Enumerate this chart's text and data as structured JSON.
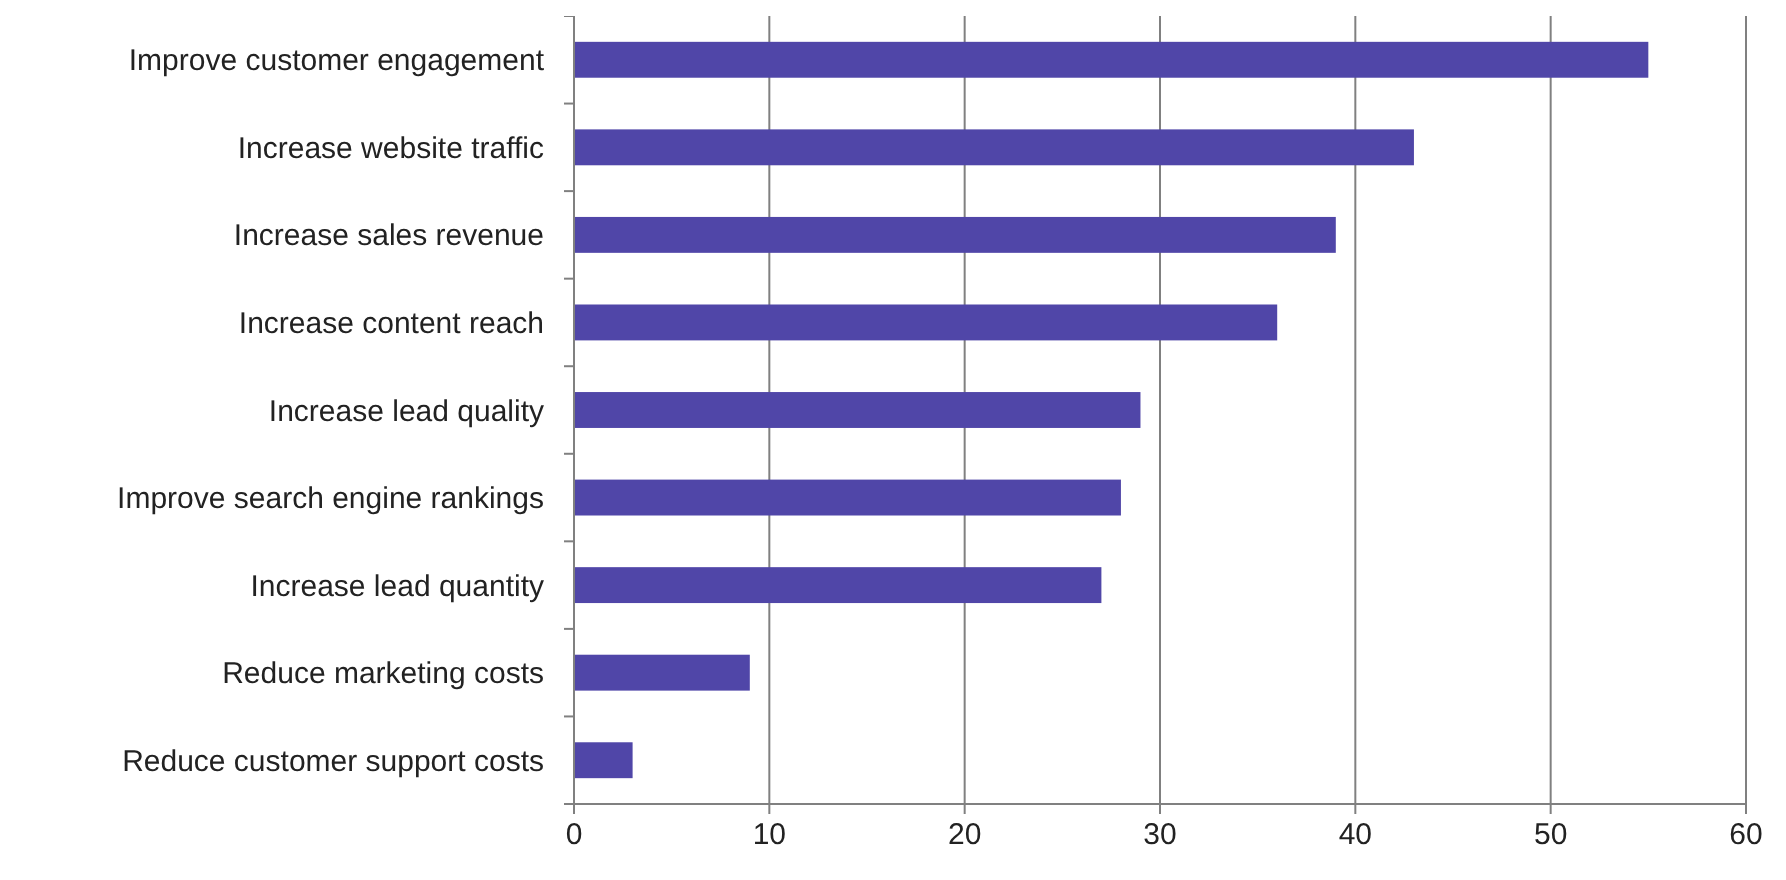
{
  "chart_data": {
    "type": "bar",
    "orientation": "horizontal",
    "categories": [
      "Improve customer engagement",
      "Increase website traffic",
      "Increase sales revenue",
      "Increase content reach",
      "Increase lead quality",
      "Improve search engine rankings",
      "Increase lead quantity",
      "Reduce marketing costs",
      "Reduce customer support costs"
    ],
    "values": [
      55,
      43,
      39,
      36,
      29,
      28,
      27,
      9,
      3
    ],
    "color": "#5046a8",
    "xlim": [
      0,
      60
    ],
    "xticks": [
      0,
      10,
      20,
      30,
      40,
      50,
      60
    ],
    "grid": "x"
  }
}
